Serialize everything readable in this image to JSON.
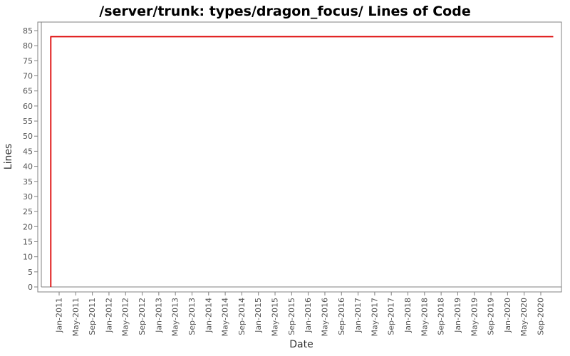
{
  "title": "/server/trunk: types/dragon_focus/ Lines of Code",
  "chart_data": {
    "type": "line",
    "title": "/server/trunk: types/dragon_focus/ Lines of Code",
    "xlabel": "Date",
    "ylabel": "Lines",
    "ylim": [
      0,
      85
    ],
    "ytick_step": 5,
    "yticks": [
      0,
      5,
      10,
      15,
      20,
      25,
      30,
      35,
      40,
      45,
      50,
      55,
      60,
      65,
      70,
      75,
      80,
      85
    ],
    "xticks": [
      "Jan-2011",
      "May-2011",
      "Sep-2011",
      "Jan-2012",
      "May-2012",
      "Sep-2012",
      "Jan-2013",
      "May-2013",
      "Sep-2013",
      "Jan-2014",
      "May-2014",
      "Sep-2014",
      "Jan-2015",
      "May-2015",
      "Sep-2015",
      "Jan-2016",
      "May-2016",
      "Sep-2016",
      "Jan-2017",
      "May-2017",
      "Sep-2017",
      "Jan-2018",
      "May-2018",
      "Sep-2018",
      "Jan-2019",
      "May-2019",
      "Sep-2019",
      "Jan-2020",
      "May-2020",
      "Sep-2020"
    ],
    "x_tick_interval_months": 4,
    "grid": "off",
    "legend": "none",
    "series": [
      {
        "name": "Lines of Code",
        "color": "#dd0000",
        "points": [
          {
            "x": "2010-11",
            "y": 0
          },
          {
            "x": "2010-11",
            "y": 83
          },
          {
            "x": "2020-12",
            "y": 83
          }
        ]
      }
    ],
    "colors": {
      "frame": "#808080",
      "tick": "#808080",
      "tick_label": "#555555",
      "axis_title": "#333333",
      "background": "#ffffff"
    }
  }
}
